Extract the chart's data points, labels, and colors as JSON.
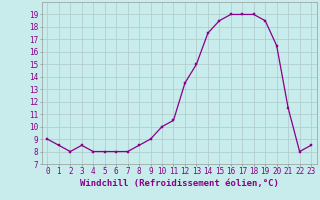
{
  "hours": [
    0,
    1,
    2,
    3,
    4,
    5,
    6,
    7,
    8,
    9,
    10,
    11,
    12,
    13,
    14,
    15,
    16,
    17,
    18,
    19,
    20,
    21,
    22,
    23
  ],
  "values": [
    9,
    8.5,
    8,
    8.5,
    8,
    8,
    8,
    8,
    8.5,
    9,
    10,
    10.5,
    13.5,
    15,
    17.5,
    18.5,
    19,
    19,
    19,
    18.5,
    16.5,
    11.5,
    8,
    8.5
  ],
  "line_color": "#880088",
  "marker_color": "#880088",
  "bg_color": "#c8ecec",
  "grid_color": "#b0c8c8",
  "xlabel": "Windchill (Refroidissement éolien,°C)",
  "xlim": [
    -0.5,
    23.5
  ],
  "ylim": [
    7,
    20
  ],
  "yticks": [
    7,
    8,
    9,
    10,
    11,
    12,
    13,
    14,
    15,
    16,
    17,
    18,
    19
  ],
  "xticks": [
    0,
    1,
    2,
    3,
    4,
    5,
    6,
    7,
    8,
    9,
    10,
    11,
    12,
    13,
    14,
    15,
    16,
    17,
    18,
    19,
    20,
    21,
    22,
    23
  ],
  "tick_fontsize": 5.5,
  "xlabel_fontsize": 6.5
}
